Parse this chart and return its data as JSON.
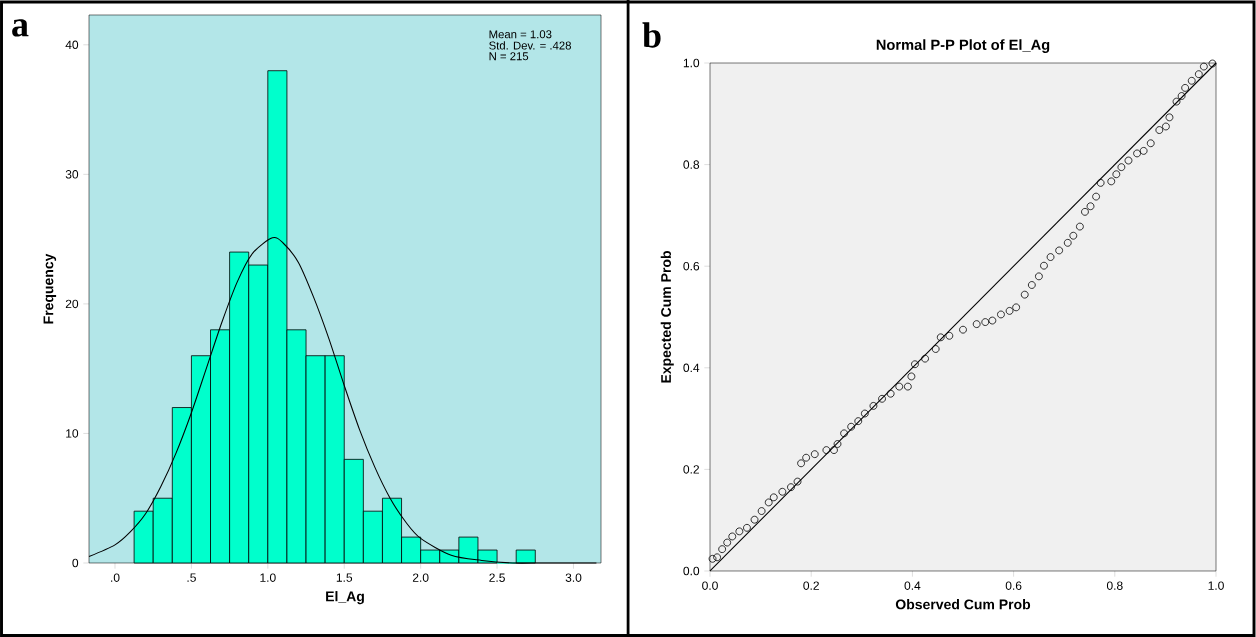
{
  "chart_data": [
    {
      "type": "histogram",
      "xlabel": "El_Ag",
      "ylabel": "Frequency",
      "annotations": [
        "a",
        "Mean = 1.03",
        "Std. Dev. = .428",
        "N = 215"
      ],
      "bins": [
        0.125,
        0.25,
        0.375,
        0.5,
        0.625,
        0.75,
        0.875,
        1.0,
        1.125,
        1.25,
        1.375,
        1.5,
        1.625,
        1.75,
        1.875,
        2.0,
        2.125,
        2.25,
        2.375,
        2.5,
        2.625,
        2.75
      ],
      "series": [
        {
          "color": "#00ffcc",
          "values": [
            4,
            5,
            12,
            16,
            18,
            24,
            23,
            38,
            18,
            16,
            16,
            8,
            4,
            5,
            2,
            1,
            1,
            2,
            1,
            0,
            1
          ]
        },
        {
          "type": "line",
          "color": "#000000",
          "x": [
            -0.17,
            0.0,
            0.1,
            0.2,
            0.3,
            0.4,
            0.5,
            0.6,
            0.7,
            0.8,
            0.9,
            1.03,
            1.1,
            1.2,
            1.3,
            1.4,
            1.5,
            1.6,
            1.7,
            1.8,
            1.9,
            2.0,
            2.2,
            2.4,
            2.6,
            2.8,
            3.15
          ],
          "values": [
            0.5,
            1.4,
            2.4,
            3.8,
            5.9,
            8.5,
            11.6,
            15.1,
            18.6,
            21.7,
            23.9,
            25.1,
            24.7,
            23.2,
            20.5,
            17.3,
            13.7,
            10.3,
            7.4,
            5.0,
            3.2,
            1.9,
            0.6,
            0.2,
            0.0,
            0.0,
            0.0
          ]
        }
      ],
      "xlim": [
        -0.17,
        3.18
      ],
      "ylim": [
        0,
        42.3
      ],
      "xticks": [
        {
          "value": 0,
          "label": ".0"
        },
        {
          "value": 0.5,
          "label": ".5"
        },
        {
          "value": 1,
          "label": "1.0"
        },
        {
          "value": 1.5,
          "label": "1.5"
        },
        {
          "value": 2,
          "label": "2.0"
        },
        {
          "value": 2.5,
          "label": "2.5"
        },
        {
          "value": 3,
          "label": "3.0"
        }
      ],
      "yticks": [
        0,
        10,
        20,
        30,
        40
      ]
    },
    {
      "type": "scatter",
      "title": "Normal P-P Plot of El_Ag",
      "xlabel": "Observed Cum Prob",
      "ylabel": "Expected Cum Prob",
      "annotations": [
        "b"
      ],
      "series": [
        {
          "marker": "circle",
          "color": "#000000",
          "x": [
            0.005,
            0.014,
            0.024,
            0.034,
            0.044,
            0.058,
            0.073,
            0.088,
            0.102,
            0.116,
            0.126,
            0.143,
            0.16,
            0.173,
            0.18,
            0.19,
            0.207,
            0.23,
            0.245,
            0.252,
            0.265,
            0.279,
            0.293,
            0.306,
            0.323,
            0.34,
            0.357,
            0.374,
            0.391,
            0.398,
            0.405,
            0.425,
            0.446,
            0.456,
            0.473,
            0.5,
            0.527,
            0.544,
            0.558,
            0.575,
            0.592,
            0.605,
            0.622,
            0.636,
            0.65,
            0.66,
            0.673,
            0.69,
            0.707,
            0.718,
            0.731,
            0.741,
            0.752,
            0.763,
            0.772,
            0.793,
            0.803,
            0.813,
            0.827,
            0.844,
            0.857,
            0.871,
            0.888,
            0.901,
            0.908,
            0.922,
            0.932,
            0.939,
            0.952,
            0.966,
            0.976,
            0.993
          ],
          "values": [
            0.024,
            0.027,
            0.043,
            0.056,
            0.068,
            0.078,
            0.085,
            0.101,
            0.118,
            0.135,
            0.145,
            0.156,
            0.165,
            0.176,
            0.212,
            0.223,
            0.23,
            0.238,
            0.238,
            0.25,
            0.271,
            0.284,
            0.295,
            0.31,
            0.325,
            0.339,
            0.349,
            0.363,
            0.363,
            0.383,
            0.407,
            0.418,
            0.437,
            0.46,
            0.463,
            0.475,
            0.486,
            0.49,
            0.493,
            0.505,
            0.512,
            0.519,
            0.544,
            0.563,
            0.58,
            0.601,
            0.618,
            0.631,
            0.646,
            0.66,
            0.678,
            0.707,
            0.718,
            0.737,
            0.764,
            0.767,
            0.781,
            0.795,
            0.808,
            0.822,
            0.827,
            0.842,
            0.868,
            0.875,
            0.893,
            0.924,
            0.935,
            0.951,
            0.965,
            0.978,
            0.993,
            0.999
          ]
        },
        {
          "type": "line",
          "marker": "none",
          "color": "#000000",
          "x": [
            0,
            1
          ],
          "values": [
            0,
            1
          ]
        }
      ],
      "xlim": [
        0,
        1
      ],
      "ylim": [
        0,
        1
      ],
      "xticks": [
        {
          "value": 0,
          "label": "0.0"
        },
        {
          "value": 0.2,
          "label": "0.2"
        },
        {
          "value": 0.4,
          "label": "0.4"
        },
        {
          "value": 0.6,
          "label": "0.6"
        },
        {
          "value": 0.8,
          "label": "0.8"
        },
        {
          "value": 1,
          "label": "1.0"
        }
      ],
      "yticks": [
        {
          "value": 0,
          "label": "0.0"
        },
        {
          "value": 0.2,
          "label": "0.2"
        },
        {
          "value": 0.4,
          "label": "0.4"
        },
        {
          "value": 0.6,
          "label": "0.6"
        },
        {
          "value": 0.8,
          "label": "0.8"
        },
        {
          "value": 1,
          "label": "1.0"
        }
      ]
    }
  ]
}
